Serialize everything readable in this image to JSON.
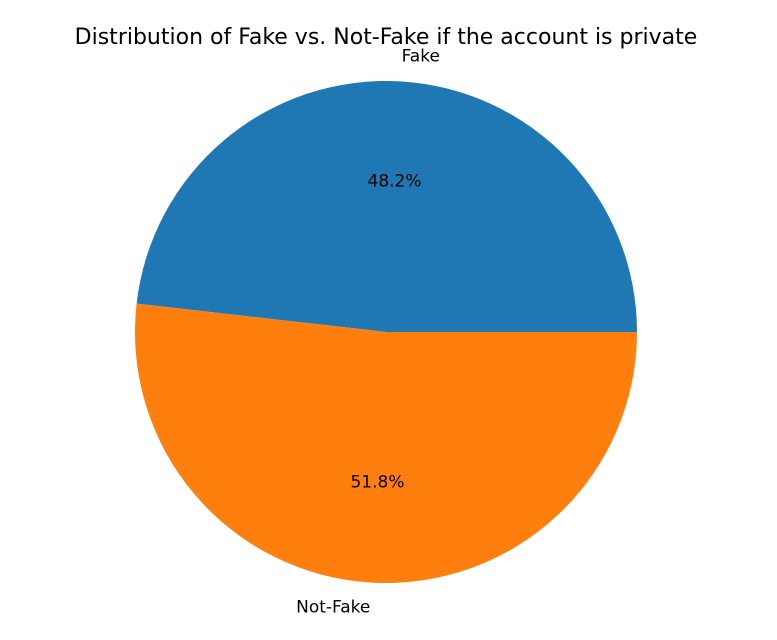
{
  "chart_data": {
    "type": "pie",
    "title": "Distribution of Fake vs. Not-Fake if the account is private",
    "categories": [
      "Fake",
      "Not-Fake"
    ],
    "values": [
      48.2,
      51.8
    ],
    "percent_labels": [
      "48.2%",
      "51.8%"
    ],
    "colors": [
      "#1f77b4",
      "#ff7f0e"
    ],
    "start_angle": 0,
    "direction": "counterclockwise",
    "legend": "none",
    "grid": false
  }
}
